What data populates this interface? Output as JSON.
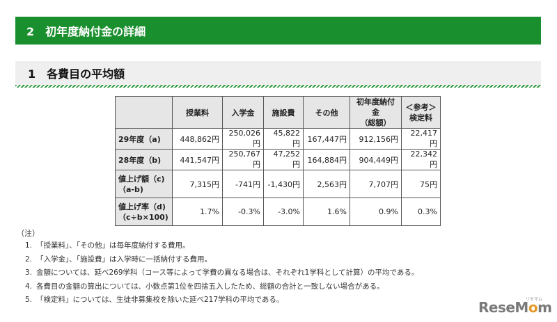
{
  "banner": {
    "title": "2　初年度納付金の詳細"
  },
  "section": {
    "title": "1　各費目の平均額"
  },
  "table": {
    "headers": [
      "",
      "授業料",
      "入学金",
      "施設費",
      "その他",
      "初年度納付金\n（総額）",
      "＜参考＞\n検定料"
    ],
    "rows": [
      {
        "label": "29年度（a)",
        "values": [
          "448,862円",
          "250,026円",
          "45,822円",
          "167,447円",
          "912,156円",
          "22,417円"
        ]
      },
      {
        "label": "28年度（b)",
        "values": [
          "441,547円",
          "250,767円",
          "47,252円",
          "164,884円",
          "904,449円",
          "22,342円"
        ]
      },
      {
        "label": "値上げ額（c)\n（a-b)",
        "values": [
          "7,315円",
          "-741円",
          "-1,430円",
          "2,563円",
          "7,707円",
          "75円"
        ]
      },
      {
        "label": "値上げ率（d)\n（c÷b×100)",
        "values": [
          "1.7%",
          "-0.3%",
          "-3.0%",
          "1.6%",
          "0.9%",
          "0.3%"
        ]
      }
    ]
  },
  "notes": {
    "label": "（注）",
    "items": [
      {
        "num": "1.",
        "text": "「授業料」、「その他」は毎年度納付する費用。"
      },
      {
        "num": "2.",
        "text": "「入学金」、「施設費」は入学時に一括納付する費用。"
      },
      {
        "num": "3.",
        "text": "金額については、延べ269学科（コース等によって学費の異なる場合は、それぞれ1学科として計算）の平均である。"
      },
      {
        "num": "4.",
        "text": "各費目の金額の算出については、小数点第1位を四捨五入したため、総額の合計と一致しない場合がある。"
      },
      {
        "num": "5.",
        "text": "「検定料」については、生徒非募集校を除いた延べ217学科の平均である。"
      }
    ]
  },
  "logo": {
    "pre": "ReseM",
    "o": "o",
    "post": "m",
    "sub": "リセマム"
  },
  "colors": {
    "banner": "#1a8f2e",
    "stripe": "#2e9a3e",
    "header_cell": "#e6e6e6"
  }
}
